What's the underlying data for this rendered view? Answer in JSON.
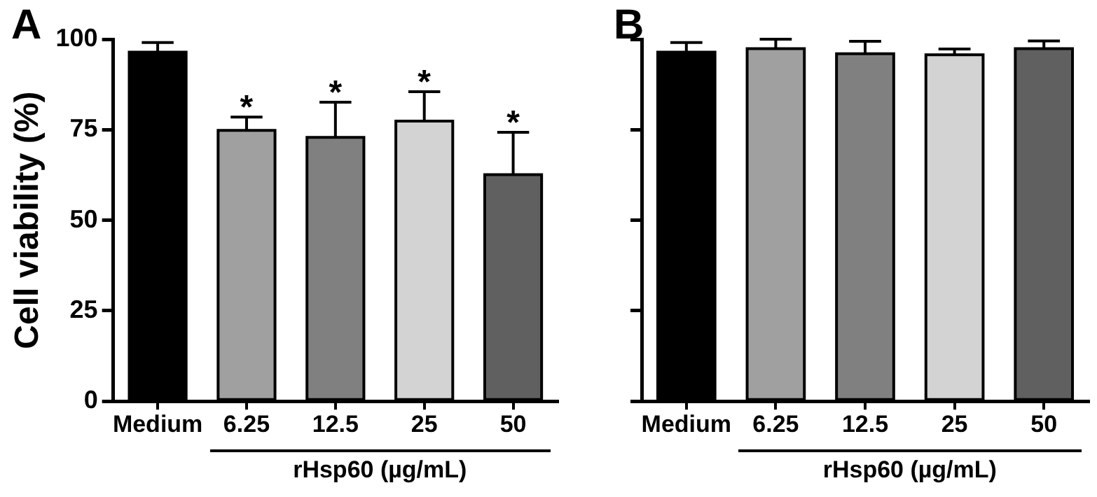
{
  "chart_data": [
    {
      "type": "bar",
      "title": "A",
      "ylabel": "Cell viability (%)",
      "xlabel": "rHsp60 (µg/mL)",
      "categories": [
        "Medium",
        "6.25",
        "12.5",
        "25",
        "50"
      ],
      "values": [
        96.4,
        74.8,
        72.9,
        77.4,
        62.6
      ],
      "errors": [
        2.7,
        3.7,
        9.7,
        8.1,
        11.7
      ],
      "colors": [
        "#000000",
        "#a0a0a0",
        "#808080",
        "#d3d3d3",
        "#606060"
      ],
      "ylim": [
        0,
        100
      ],
      "yticks": [
        0,
        25,
        50,
        75,
        100
      ],
      "grid": false,
      "annotations": [
        {
          "text": "*",
          "x": "6.25",
          "y": 78.5
        },
        {
          "text": "*",
          "x": "12.5",
          "y": 82.6
        },
        {
          "text": "*",
          "x": "25",
          "y": 85.5
        },
        {
          "text": "*",
          "x": "50",
          "y": 74.3
        }
      ]
    },
    {
      "type": "bar",
      "title": "B",
      "xlabel": "rHsp60 (µg/mL)",
      "categories": [
        "Medium",
        "6.25",
        "12.5",
        "25",
        "50"
      ],
      "values": [
        96.4,
        97.4,
        96.0,
        95.7,
        97.4
      ],
      "errors": [
        2.7,
        2.6,
        3.4,
        1.6,
        2.1
      ],
      "colors": [
        "#000000",
        "#a0a0a0",
        "#808080",
        "#d3d3d3",
        "#606060"
      ],
      "ylim": [
        0,
        100
      ],
      "yticks": [
        0,
        25,
        50,
        75,
        100
      ],
      "grid": false,
      "tick_labels": "x"
    }
  ]
}
